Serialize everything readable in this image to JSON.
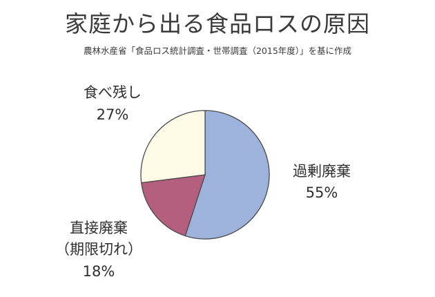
{
  "title": "家庭から出る食品ロスの原因",
  "subtitle": "農林水産省「食品ロス統計調査・世帯調査（2015年度）」を基に作成",
  "chart_data": {
    "type": "pie",
    "title": "家庭から出る食品ロスの原因",
    "subtitle": "農林水産省「食品ロス統計調査・世帯調査（2015年度）」を基に作成",
    "start_angle_deg": 0,
    "direction": "clockwise",
    "slices": [
      {
        "label": "過剰廃棄",
        "value": 55,
        "value_label": "55%",
        "color": "#9db3db"
      },
      {
        "label": "直接廃棄（期限切れ）",
        "label_lines": [
          "直接廃棄",
          "（期限切れ）"
        ],
        "value": 18,
        "value_label": "18%",
        "color": "#b55f7e"
      },
      {
        "label": "食べ残し",
        "value": 27,
        "value_label": "27%",
        "color": "#fdfbe6"
      }
    ]
  }
}
